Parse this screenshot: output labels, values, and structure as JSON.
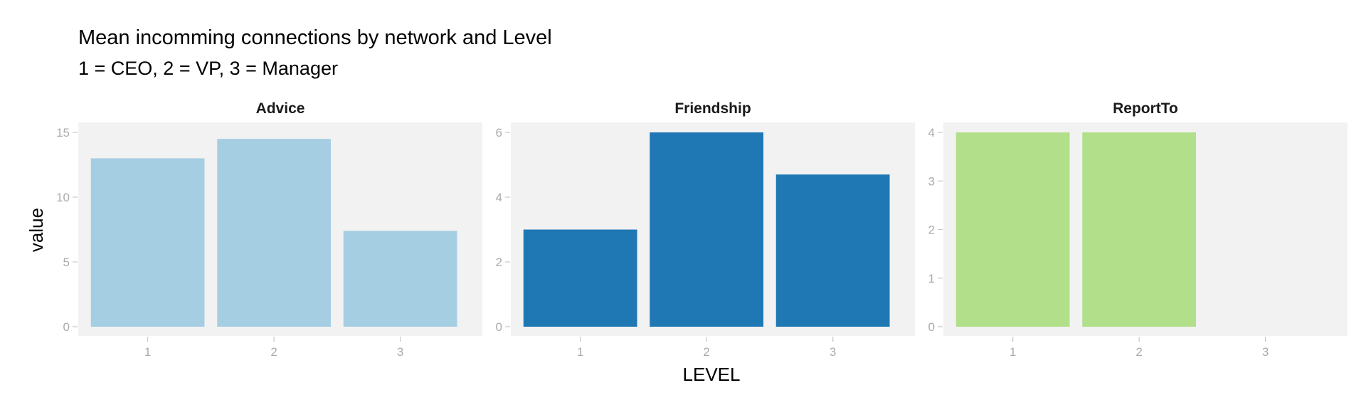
{
  "chart_data": {
    "type": "bar",
    "title": "Mean incomming connections by network and Level",
    "subtitle": "1 = CEO, 2 = VP, 3 = Manager",
    "xlabel": "LEVEL",
    "ylabel": "value",
    "categories": [
      "1",
      "2",
      "3"
    ],
    "grid": false,
    "legend": "none",
    "facets": [
      {
        "name": "Advice",
        "color": "#a6cee3",
        "values": [
          13.0,
          14.5,
          7.4
        ],
        "ylim": [
          0,
          15
        ],
        "yticks": [
          0,
          5,
          10,
          15
        ]
      },
      {
        "name": "Friendship",
        "color": "#1f78b4",
        "values": [
          3.0,
          6.0,
          4.7
        ],
        "ylim": [
          0,
          6
        ],
        "yticks": [
          0,
          2,
          4,
          6
        ]
      },
      {
        "name": "ReportTo",
        "color": "#b2df8a",
        "values": [
          4.0,
          4.0,
          0
        ],
        "ylim": [
          0,
          4
        ],
        "yticks": [
          0,
          1,
          2,
          3,
          4
        ]
      }
    ]
  }
}
